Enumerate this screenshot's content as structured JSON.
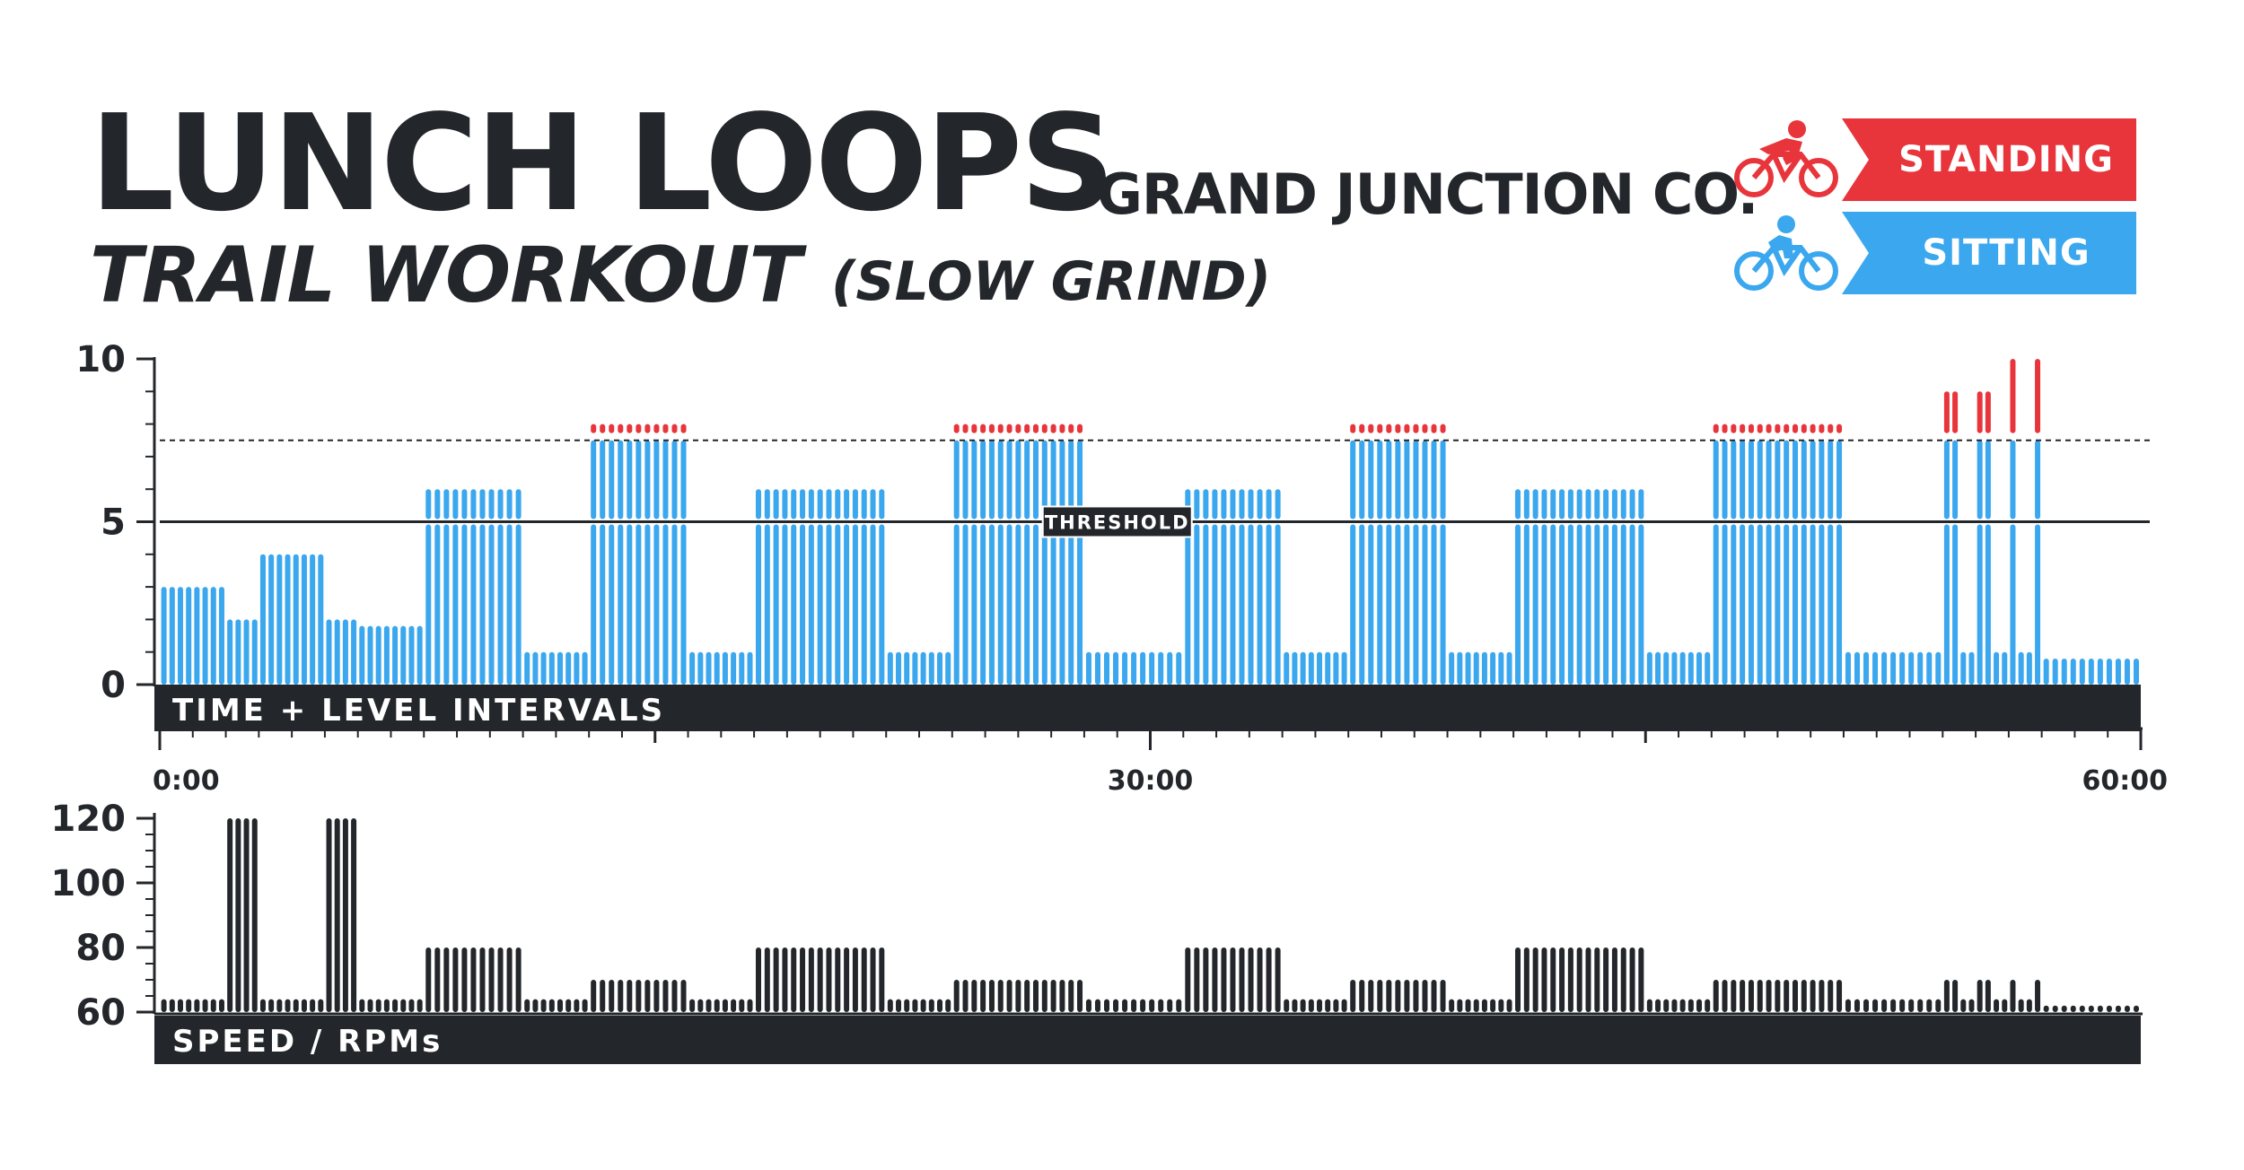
{
  "header": {
    "title": "LUNCH LOOPS",
    "location": "GRAND JUNCTION CO.",
    "workout": "TRAIL WORKOUT",
    "pace": "(SLOW GRIND)"
  },
  "legend": [
    {
      "label": "STANDING",
      "color": "#e8353b",
      "icon": "standing-cyclist-icon"
    },
    {
      "label": "SITTING",
      "color": "#3aa7ee",
      "icon": "sitting-cyclist-icon"
    }
  ],
  "colors": {
    "standing": "#e8353b",
    "sitting": "#3aa7ee",
    "dark": "#23262a"
  },
  "chart_data": [
    {
      "type": "bar",
      "name": "level",
      "label": "TIME + LEVEL INTERVALS",
      "ylim": [
        0,
        10
      ],
      "yticks": [
        "0",
        "5",
        "10"
      ],
      "xlim": [
        0,
        60
      ],
      "xticks": [
        {
          "value": 0,
          "label": "0:00"
        },
        {
          "value": 30,
          "label": "30:00"
        },
        {
          "value": 60,
          "label": "60:00"
        }
      ],
      "threshold": {
        "value": 5,
        "label": "THRESHOLD"
      },
      "reference_line": 7.5,
      "segments": [
        {
          "start": 0,
          "end": 2,
          "level": 3
        },
        {
          "start": 2,
          "end": 3,
          "level": 2
        },
        {
          "start": 3,
          "end": 5,
          "level": 4
        },
        {
          "start": 5,
          "end": 6,
          "level": 2
        },
        {
          "start": 6,
          "end": 8,
          "level": 1.8
        },
        {
          "start": 8,
          "end": 11,
          "level": 6
        },
        {
          "start": 11,
          "end": 13,
          "level": 1
        },
        {
          "start": 13,
          "end": 16,
          "level": 7.5,
          "standing": 8
        },
        {
          "start": 16,
          "end": 18,
          "level": 1
        },
        {
          "start": 18,
          "end": 22,
          "level": 6
        },
        {
          "start": 22,
          "end": 24,
          "level": 1
        },
        {
          "start": 24,
          "end": 28,
          "level": 7.5,
          "standing": 8
        },
        {
          "start": 28,
          "end": 31,
          "level": 1
        },
        {
          "start": 31,
          "end": 34,
          "level": 6
        },
        {
          "start": 34,
          "end": 36,
          "level": 1
        },
        {
          "start": 36,
          "end": 39,
          "level": 7.5,
          "standing": 8
        },
        {
          "start": 39,
          "end": 41,
          "level": 1
        },
        {
          "start": 41,
          "end": 45,
          "level": 6
        },
        {
          "start": 45,
          "end": 47,
          "level": 1
        },
        {
          "start": 47,
          "end": 51,
          "level": 7.5,
          "standing": 8
        },
        {
          "start": 51,
          "end": 54,
          "level": 1
        },
        {
          "start": 54,
          "end": 54.5,
          "level": 7.5,
          "standing": 9
        },
        {
          "start": 54.5,
          "end": 55,
          "level": 1
        },
        {
          "start": 55,
          "end": 55.5,
          "level": 7.5,
          "standing": 9
        },
        {
          "start": 55.5,
          "end": 56,
          "level": 1
        },
        {
          "start": 56,
          "end": 56.25,
          "level": 7.5,
          "standing": 10
        },
        {
          "start": 56.25,
          "end": 56.75,
          "level": 1
        },
        {
          "start": 56.75,
          "end": 57,
          "level": 7.5,
          "standing": 10
        },
        {
          "start": 57,
          "end": 60,
          "level": 0.8
        }
      ]
    },
    {
      "type": "bar",
      "name": "rpm",
      "label": "SPEED / RPMs",
      "ylim": [
        60,
        120
      ],
      "yticks": [
        "60",
        "80",
        "100",
        "120"
      ],
      "xlim": [
        0,
        60
      ],
      "segments": [
        {
          "start": 0,
          "end": 2,
          "rpm": 64
        },
        {
          "start": 2,
          "end": 3,
          "rpm": 120
        },
        {
          "start": 3,
          "end": 5,
          "rpm": 64
        },
        {
          "start": 5,
          "end": 6,
          "rpm": 120
        },
        {
          "start": 6,
          "end": 8,
          "rpm": 64
        },
        {
          "start": 8,
          "end": 11,
          "rpm": 80
        },
        {
          "start": 11,
          "end": 13,
          "rpm": 64
        },
        {
          "start": 13,
          "end": 16,
          "rpm": 70
        },
        {
          "start": 16,
          "end": 18,
          "rpm": 64
        },
        {
          "start": 18,
          "end": 22,
          "rpm": 80
        },
        {
          "start": 22,
          "end": 24,
          "rpm": 64
        },
        {
          "start": 24,
          "end": 28,
          "rpm": 70
        },
        {
          "start": 28,
          "end": 31,
          "rpm": 64
        },
        {
          "start": 31,
          "end": 34,
          "rpm": 80
        },
        {
          "start": 34,
          "end": 36,
          "rpm": 64
        },
        {
          "start": 36,
          "end": 39,
          "rpm": 70
        },
        {
          "start": 39,
          "end": 41,
          "rpm": 64
        },
        {
          "start": 41,
          "end": 45,
          "rpm": 80
        },
        {
          "start": 45,
          "end": 47,
          "rpm": 64
        },
        {
          "start": 47,
          "end": 51,
          "rpm": 70
        },
        {
          "start": 51,
          "end": 54,
          "rpm": 64
        },
        {
          "start": 54,
          "end": 54.5,
          "rpm": 70
        },
        {
          "start": 54.5,
          "end": 55,
          "rpm": 64
        },
        {
          "start": 55,
          "end": 55.5,
          "rpm": 70
        },
        {
          "start": 55.5,
          "end": 56,
          "rpm": 64
        },
        {
          "start": 56,
          "end": 56.25,
          "rpm": 70
        },
        {
          "start": 56.25,
          "end": 56.75,
          "rpm": 64
        },
        {
          "start": 56.75,
          "end": 57,
          "rpm": 70
        },
        {
          "start": 57,
          "end": 60,
          "rpm": 62
        }
      ]
    }
  ]
}
